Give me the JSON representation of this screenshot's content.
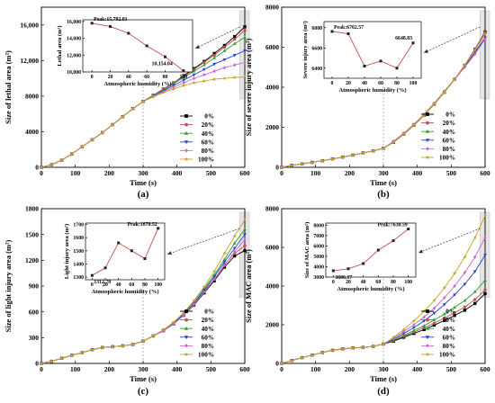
{
  "colors": [
    "#000000",
    "#c0504d",
    "#2ca02c",
    "#1f3fd0",
    "#cc66cc",
    "#c8a020"
  ],
  "chart_data": [
    {
      "type": "line",
      "panel": "(a)",
      "xlabel": "Time (s)",
      "ylabel": "Size of lethal area (m²)",
      "xlim": [
        0,
        600
      ],
      "ylim": [
        0,
        18000
      ],
      "xticks": [
        0,
        100,
        200,
        300,
        400,
        500,
        600
      ],
      "yticks": [
        0,
        4000,
        8000,
        12000,
        16000
      ],
      "ytick_labels": [
        "0",
        "4000",
        "8000",
        "12,000",
        "16,000"
      ],
      "legend_position": "bottom-right",
      "x": [
        0,
        30,
        60,
        90,
        120,
        150,
        180,
        210,
        240,
        270,
        300,
        330,
        360,
        390,
        420,
        450,
        480,
        510,
        540,
        570,
        600
      ],
      "series": [
        {
          "name": "0%",
          "values": [
            0,
            300,
            800,
            1500,
            2300,
            3100,
            3900,
            4800,
            5700,
            6600,
            7400,
            8100,
            8800,
            9500,
            10300,
            11100,
            11900,
            12800,
            13700,
            14700,
            15800
          ]
        },
        {
          "name": "20%",
          "values": [
            0,
            300,
            800,
            1500,
            2300,
            3100,
            3900,
            4800,
            5700,
            6600,
            7400,
            8100,
            8800,
            9500,
            10200,
            11000,
            11800,
            12600,
            13500,
            14400,
            15400
          ]
        },
        {
          "name": "40%",
          "values": [
            0,
            300,
            800,
            1500,
            2300,
            3100,
            3900,
            4800,
            5700,
            6600,
            7400,
            8100,
            8700,
            9400,
            10100,
            10800,
            11500,
            12300,
            13100,
            13900,
            14600
          ]
        },
        {
          "name": "60%",
          "values": [
            0,
            300,
            800,
            1500,
            2300,
            3100,
            3900,
            4800,
            5700,
            6600,
            7400,
            8000,
            8600,
            9200,
            9800,
            10400,
            11000,
            11600,
            12100,
            12600,
            13100
          ]
        },
        {
          "name": "80%",
          "values": [
            0,
            300,
            800,
            1500,
            2300,
            3100,
            3900,
            4800,
            5700,
            6600,
            7400,
            8000,
            8500,
            9000,
            9500,
            10000,
            10400,
            10800,
            11200,
            11500,
            11800
          ]
        },
        {
          "name": "100%",
          "values": [
            0,
            300,
            800,
            1500,
            2300,
            3100,
            3900,
            4800,
            5700,
            6600,
            7400,
            7900,
            8400,
            8800,
            9200,
            9500,
            9700,
            9900,
            10000,
            10100,
            10150
          ]
        }
      ],
      "inset": {
        "xlabel": "Atmospheric humidity (%)",
        "ylabel": "Lethal area (m²)",
        "x": [
          0,
          20,
          40,
          60,
          80,
          100
        ],
        "values": [
          15792.01,
          15400,
          14600,
          13100,
          11800,
          10154.04
        ],
        "xlim": [
          -10,
          110
        ],
        "ylim": [
          10000,
          16200
        ],
        "xticks": [
          0,
          20,
          40,
          60,
          80,
          100
        ],
        "yticks": [
          10000,
          12000,
          14000,
          16000
        ],
        "ytick_labels": [
          "10,000",
          "12,000",
          "14,000",
          "16,000"
        ],
        "annotations": [
          {
            "text": "Peak:15,792.01",
            "at": [
              0,
              15792.01
            ]
          },
          {
            "text": "10,154.04",
            "at": [
              100,
              10154.04
            ]
          }
        ]
      }
    },
    {
      "type": "line",
      "panel": "(b)",
      "xlabel": "Time (s)",
      "ylabel": "Size of severe injury area (m²)",
      "xlim": [
        0,
        600
      ],
      "ylim": [
        0,
        8000
      ],
      "xticks": [
        0,
        100,
        200,
        300,
        400,
        500,
        600
      ],
      "yticks": [
        0,
        2000,
        4000,
        6000,
        8000
      ],
      "ytick_labels": [
        "0",
        "2000",
        "4000",
        "6000",
        "8000"
      ],
      "legend_position": "bottom-right",
      "x": [
        0,
        30,
        60,
        90,
        120,
        150,
        180,
        210,
        240,
        270,
        300,
        330,
        360,
        390,
        420,
        450,
        480,
        510,
        540,
        570,
        600
      ],
      "series": [
        {
          "name": "0%",
          "values": [
            0,
            100,
            170,
            250,
            330,
            420,
            510,
            610,
            720,
            820,
            950,
            1250,
            1650,
            2100,
            2600,
            3150,
            3750,
            4400,
            5100,
            5900,
            6762.57
          ]
        },
        {
          "name": "20%",
          "values": [
            0,
            100,
            170,
            250,
            330,
            420,
            510,
            610,
            720,
            820,
            950,
            1250,
            1650,
            2100,
            2600,
            3150,
            3750,
            4400,
            5100,
            5900,
            6740
          ]
        },
        {
          "name": "40%",
          "values": [
            0,
            100,
            170,
            250,
            330,
            420,
            510,
            610,
            720,
            820,
            950,
            1300,
            1700,
            2150,
            2650,
            3200,
            3800,
            4400,
            5050,
            5700,
            6420
          ]
        },
        {
          "name": "60%",
          "values": [
            0,
            100,
            170,
            250,
            330,
            420,
            510,
            610,
            720,
            820,
            950,
            1280,
            1680,
            2130,
            2630,
            3180,
            3780,
            4400,
            5050,
            5750,
            6470
          ]
        },
        {
          "name": "80%",
          "values": [
            0,
            100,
            170,
            250,
            330,
            420,
            510,
            610,
            720,
            820,
            950,
            1300,
            1700,
            2150,
            2650,
            3200,
            3780,
            4380,
            5000,
            5650,
            6400
          ]
        },
        {
          "name": "100%",
          "values": [
            0,
            100,
            170,
            250,
            330,
            420,
            510,
            610,
            720,
            820,
            950,
            1250,
            1650,
            2100,
            2600,
            3150,
            3750,
            4400,
            5100,
            5850,
            6648.83
          ]
        }
      ],
      "inset": {
        "xlabel": "Atmospheric humidity (%)",
        "ylabel": "Severe injury area (m²)",
        "x": [
          0,
          20,
          40,
          60,
          80,
          100
        ],
        "values": [
          6762.57,
          6740,
          6420,
          6470,
          6400,
          6648.83
        ],
        "xlim": [
          -10,
          110
        ],
        "ylim": [
          6300,
          6860
        ],
        "xticks": [
          0,
          20,
          40,
          60,
          80,
          100
        ],
        "yticks": [
          6400,
          6600,
          6800
        ],
        "ytick_labels": [
          "6400",
          "6600",
          "6800"
        ],
        "annotations": [
          {
            "text": "Peak:6762.57",
            "at": [
              0,
              6762.57
            ]
          },
          {
            "text": "6648.83",
            "at": [
              100,
              6648.83
            ]
          }
        ]
      }
    },
    {
      "type": "line",
      "panel": "(c)",
      "xlabel": "Time (s)",
      "ylabel": "Size of light injury area (m²)",
      "xlim": [
        0,
        600
      ],
      "ylim": [
        0,
        1800
      ],
      "xticks": [
        0,
        100,
        200,
        300,
        400,
        500,
        600
      ],
      "yticks": [
        0,
        300,
        600,
        900,
        1200,
        1500,
        1800
      ],
      "ytick_labels": [
        "0",
        "300",
        "600",
        "900",
        "1200",
        "1500",
        "1800"
      ],
      "legend_position": "bottom-right",
      "x": [
        0,
        30,
        60,
        90,
        120,
        150,
        180,
        210,
        240,
        270,
        300,
        330,
        360,
        390,
        420,
        450,
        480,
        510,
        540,
        570,
        600
      ],
      "series": [
        {
          "name": "0%",
          "values": [
            0,
            25,
            60,
            95,
            125,
            160,
            185,
            195,
            205,
            220,
            260,
            320,
            380,
            460,
            560,
            680,
            820,
            960,
            1120,
            1250,
            1312.78
          ]
        },
        {
          "name": "20%",
          "values": [
            0,
            25,
            60,
            95,
            125,
            160,
            185,
            195,
            205,
            220,
            260,
            320,
            380,
            460,
            560,
            690,
            840,
            980,
            1150,
            1280,
            1370
          ]
        },
        {
          "name": "40%",
          "values": [
            0,
            25,
            60,
            95,
            125,
            160,
            185,
            195,
            205,
            220,
            260,
            320,
            390,
            470,
            580,
            720,
            870,
            1030,
            1210,
            1400,
            1560
          ]
        },
        {
          "name": "60%",
          "values": [
            0,
            25,
            60,
            95,
            125,
            160,
            185,
            195,
            205,
            220,
            260,
            320,
            390,
            470,
            570,
            700,
            850,
            1010,
            1180,
            1340,
            1500
          ]
        },
        {
          "name": "80%",
          "values": [
            0,
            25,
            60,
            95,
            125,
            160,
            185,
            195,
            205,
            220,
            260,
            320,
            380,
            460,
            560,
            690,
            830,
            980,
            1140,
            1300,
            1440
          ]
        },
        {
          "name": "100%",
          "values": [
            0,
            25,
            60,
            95,
            125,
            160,
            185,
            195,
            205,
            220,
            260,
            320,
            390,
            480,
            590,
            730,
            890,
            1070,
            1280,
            1480,
            1670.52
          ]
        }
      ],
      "inset": {
        "xlabel": "Atmospheric humidity (%)",
        "ylabel": "Light injury area (m²)",
        "x": [
          0,
          20,
          40,
          60,
          80,
          100
        ],
        "values": [
          1312.78,
          1370,
          1560,
          1500,
          1440,
          1670.52
        ],
        "xlim": [
          -10,
          110
        ],
        "ylim": [
          1280,
          1710
        ],
        "xticks": [
          0,
          20,
          40,
          60,
          80,
          100
        ],
        "yticks": [
          1300,
          1400,
          1500,
          1600,
          1700
        ],
        "ytick_labels": [
          "1300",
          "1400",
          "1500",
          "1600",
          "1700"
        ],
        "annotations": [
          {
            "text": "1312.78",
            "at": [
              0,
              1312.78
            ]
          },
          {
            "text": "Peak:1670.52",
            "at": [
              100,
              1670.52
            ]
          }
        ]
      }
    },
    {
      "type": "line",
      "panel": "(d)",
      "xlabel": "Time (s)",
      "ylabel": "Size of MAC area (m²)",
      "xlim": [
        0,
        600
      ],
      "ylim": [
        0,
        8000
      ],
      "xticks": [
        0,
        100,
        200,
        300,
        400,
        500,
        600
      ],
      "yticks": [
        0,
        2000,
        4000,
        6000,
        8000
      ],
      "ytick_labels": [
        "0",
        "2000",
        "4000",
        "6000",
        "8000"
      ],
      "legend_position": "bottom-right",
      "x": [
        0,
        30,
        60,
        90,
        120,
        150,
        180,
        210,
        240,
        270,
        300,
        330,
        360,
        390,
        420,
        450,
        480,
        510,
        540,
        570,
        600
      ],
      "series": [
        {
          "name": "0%",
          "values": [
            0,
            150,
            300,
            430,
            560,
            680,
            750,
            800,
            830,
            880,
            1000,
            1150,
            1350,
            1550,
            1750,
            1980,
            2220,
            2480,
            2750,
            3100,
            3606.17
          ]
        },
        {
          "name": "20%",
          "values": [
            0,
            150,
            300,
            430,
            560,
            680,
            750,
            800,
            830,
            880,
            1000,
            1180,
            1400,
            1620,
            1850,
            2080,
            2350,
            2620,
            2920,
            3300,
            3800
          ]
        },
        {
          "name": "40%",
          "values": [
            0,
            150,
            300,
            430,
            560,
            680,
            750,
            800,
            830,
            880,
            1000,
            1200,
            1450,
            1700,
            1950,
            2250,
            2550,
            2900,
            3250,
            3700,
            4300
          ]
        },
        {
          "name": "60%",
          "values": [
            0,
            150,
            300,
            430,
            560,
            680,
            750,
            800,
            830,
            880,
            1000,
            1250,
            1550,
            1850,
            2200,
            2600,
            3050,
            3550,
            4100,
            4750,
            5600
          ]
        },
        {
          "name": "80%",
          "values": [
            0,
            150,
            300,
            430,
            560,
            680,
            750,
            800,
            830,
            880,
            1000,
            1300,
            1650,
            2000,
            2400,
            2850,
            3400,
            4000,
            4700,
            5500,
            6500
          ]
        },
        {
          "name": "100%",
          "values": [
            0,
            150,
            300,
            430,
            560,
            680,
            750,
            800,
            830,
            880,
            1000,
            1350,
            1750,
            2200,
            2700,
            3250,
            3900,
            4650,
            5500,
            6500,
            7630.59
          ]
        }
      ],
      "inset": {
        "xlabel": "Atmospheric humidity (%)",
        "ylabel": "Size of MAC area (m²)",
        "x": [
          0,
          20,
          40,
          60,
          80,
          100
        ],
        "values": [
          3606.17,
          3800,
          4300,
          5600,
          6500,
          7630.59
        ],
        "xlim": [
          -10,
          110
        ],
        "ylim": [
          3000,
          8200
        ],
        "xticks": [
          0,
          20,
          40,
          60,
          80,
          100
        ],
        "yticks": [
          3000,
          4000,
          5000,
          6000,
          7000,
          8000
        ],
        "ytick_labels": [
          "3000",
          "4000",
          "5000",
          "6000",
          "7000",
          "8000"
        ],
        "annotations": [
          {
            "text": "3606.17",
            "at": [
              0,
              3606.17
            ]
          },
          {
            "text": "Peak:7630.59",
            "at": [
              100,
              7630.59
            ]
          }
        ]
      }
    }
  ]
}
